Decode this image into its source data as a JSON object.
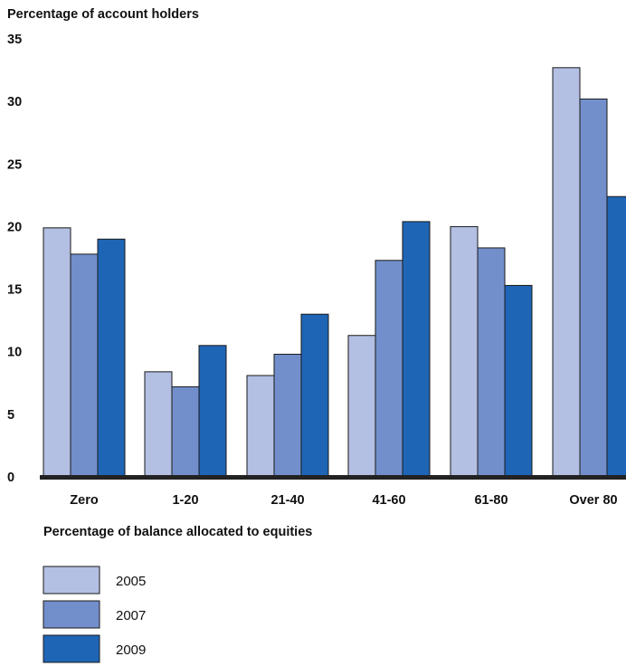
{
  "chart_data": {
    "type": "bar",
    "ylabel": "Percentage of account holders",
    "xlabel": "Percentage of balance allocated to equities",
    "categories": [
      "Zero",
      "1-20",
      "21-40",
      "41-60",
      "61-80",
      "Over 80"
    ],
    "yticks": [
      "0",
      "5",
      "10",
      "15",
      "20",
      "25",
      "30",
      "35"
    ],
    "ylim": [
      0,
      35
    ],
    "grid": false,
    "legend_position": "bottom-left",
    "series": [
      {
        "name": "2005",
        "color": "#b3bfe3",
        "values": [
          19.9,
          8.4,
          8.1,
          11.3,
          20.0,
          32.7
        ]
      },
      {
        "name": "2007",
        "color": "#728fcb",
        "values": [
          17.8,
          7.2,
          9.8,
          17.3,
          18.3,
          30.2
        ]
      },
      {
        "name": "2009",
        "color": "#1f65b6",
        "values": [
          19.0,
          10.5,
          13.0,
          20.4,
          15.3,
          22.4
        ]
      }
    ]
  }
}
